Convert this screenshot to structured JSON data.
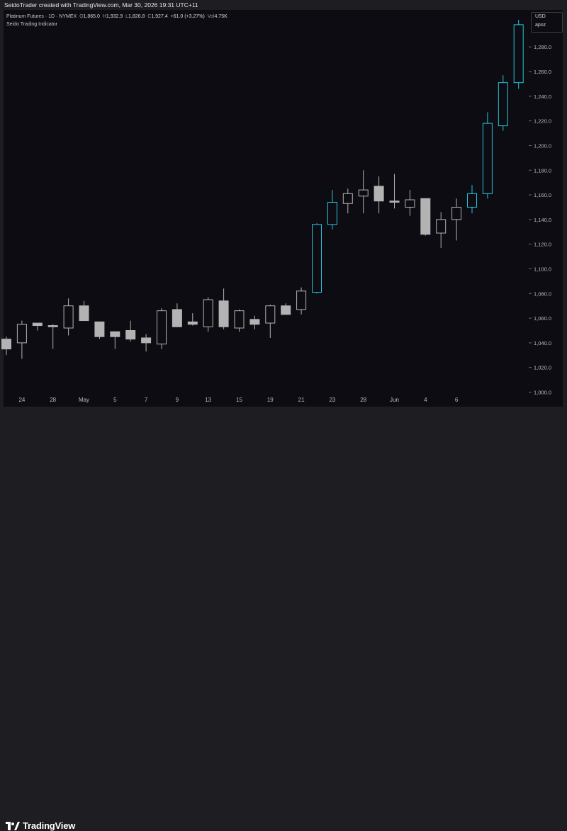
{
  "header": {
    "attribution": "SeidoTrader created with TradingView.com, Mar 30, 2026 19:31 UTC+11"
  },
  "legend": {
    "symbol": "Platinum Futures · 1D · NYMEX",
    "open_label": "O",
    "open": "1,865.0",
    "high_label": "H",
    "high": "1,932.9",
    "low_label": "L",
    "low": "1,826.8",
    "close_label": "C",
    "close": "1,927.4",
    "change": "+61.0 (+3.27%)",
    "vol_label": "Vol",
    "vol": "4.75K",
    "indicator": "Seido Trading Indicator"
  },
  "currency": {
    "code": "USD",
    "label": "apoz"
  },
  "footer": {
    "brand": "TradingView"
  },
  "colors": {
    "up_outline": "#26c6da",
    "neutral_body": "#b3b3b3",
    "neutral_outline": "#b3b3b3",
    "background": "#0c0c12"
  },
  "chart_data": {
    "type": "candlestick",
    "y_ticks": [
      "1,000.0",
      "1,020.0",
      "1,040.0",
      "1,060.0",
      "1,080.0",
      "1,100.0",
      "1,120.0",
      "1,140.0",
      "1,160.0",
      "1,180.0",
      "1,200.0",
      "1,220.0",
      "1,240.0",
      "1,260.0",
      "1,280.0"
    ],
    "y_tick_values": [
      1000,
      1020,
      1040,
      1060,
      1080,
      1100,
      1120,
      1140,
      1160,
      1180,
      1200,
      1220,
      1240,
      1260,
      1280
    ],
    "ylim": [
      998,
      1310
    ],
    "x_ticks": [
      {
        "label": "24",
        "i": 1
      },
      {
        "label": "28",
        "i": 3
      },
      {
        "label": "May",
        "i": 5
      },
      {
        "label": "5",
        "i": 7
      },
      {
        "label": "7",
        "i": 9
      },
      {
        "label": "9",
        "i": 11
      },
      {
        "label": "13",
        "i": 13
      },
      {
        "label": "15",
        "i": 15
      },
      {
        "label": "19",
        "i": 17
      },
      {
        "label": "21",
        "i": 19
      },
      {
        "label": "23",
        "i": 21
      },
      {
        "label": "28",
        "i": 23
      },
      {
        "label": "Jun",
        "i": 25
      },
      {
        "label": "4",
        "i": 27
      },
      {
        "label": "6",
        "i": 29
      }
    ],
    "candles": [
      {
        "o": 1035,
        "h": 1045,
        "l": 1030,
        "c": 1043,
        "s": "n"
      },
      {
        "o": 1040,
        "h": 1058,
        "l": 1027,
        "c": 1055,
        "s": "h"
      },
      {
        "o": 1054,
        "h": 1056,
        "l": 1050,
        "c": 1056,
        "s": "f"
      },
      {
        "o": 1053,
        "h": 1055,
        "l": 1035,
        "c": 1054,
        "s": "f"
      },
      {
        "o": 1052,
        "h": 1076,
        "l": 1046,
        "c": 1070,
        "s": "h"
      },
      {
        "o": 1070,
        "h": 1074,
        "l": 1058,
        "c": 1058,
        "s": "f"
      },
      {
        "o": 1057,
        "h": 1057,
        "l": 1043,
        "c": 1045,
        "s": "f"
      },
      {
        "o": 1049,
        "h": 1049,
        "l": 1035,
        "c": 1045,
        "s": "f"
      },
      {
        "o": 1050,
        "h": 1058,
        "l": 1041,
        "c": 1043,
        "s": "f"
      },
      {
        "o": 1044,
        "h": 1047,
        "l": 1033,
        "c": 1040,
        "s": "f"
      },
      {
        "o": 1039,
        "h": 1068,
        "l": 1035,
        "c": 1066,
        "s": "h"
      },
      {
        "o": 1067,
        "h": 1072,
        "l": 1053,
        "c": 1053,
        "s": "f"
      },
      {
        "o": 1055,
        "h": 1064,
        "l": 1054,
        "c": 1057,
        "s": "f"
      },
      {
        "o": 1053,
        "h": 1077,
        "l": 1049,
        "c": 1075,
        "s": "h"
      },
      {
        "o": 1074,
        "h": 1084,
        "l": 1051,
        "c": 1053,
        "s": "f"
      },
      {
        "o": 1052,
        "h": 1067,
        "l": 1049,
        "c": 1066,
        "s": "h"
      },
      {
        "o": 1059,
        "h": 1062,
        "l": 1051,
        "c": 1055,
        "s": "f"
      },
      {
        "o": 1056,
        "h": 1071,
        "l": 1044,
        "c": 1070,
        "s": "h"
      },
      {
        "o": 1070,
        "h": 1072,
        "l": 1063,
        "c": 1063,
        "s": "f"
      },
      {
        "o": 1067,
        "h": 1085,
        "l": 1063,
        "c": 1082,
        "s": "h"
      },
      {
        "o": 1081,
        "h": 1137,
        "l": 1080,
        "c": 1136,
        "s": "u"
      },
      {
        "o": 1136,
        "h": 1164,
        "l": 1132,
        "c": 1154,
        "s": "u"
      },
      {
        "o": 1153,
        "h": 1165,
        "l": 1145,
        "c": 1161,
        "s": "h"
      },
      {
        "o": 1159,
        "h": 1180,
        "l": 1145,
        "c": 1164,
        "s": "h"
      },
      {
        "o": 1167,
        "h": 1175,
        "l": 1145,
        "c": 1155,
        "s": "f"
      },
      {
        "o": 1155,
        "h": 1177,
        "l": 1149,
        "c": 1154,
        "s": "f"
      },
      {
        "o": 1150,
        "h": 1164,
        "l": 1143,
        "c": 1156,
        "s": "h"
      },
      {
        "o": 1157,
        "h": 1157,
        "l": 1127,
        "c": 1128,
        "s": "f"
      },
      {
        "o": 1129,
        "h": 1146,
        "l": 1117,
        "c": 1140,
        "s": "h"
      },
      {
        "o": 1140,
        "h": 1157,
        "l": 1123,
        "c": 1150,
        "s": "h"
      },
      {
        "o": 1150,
        "h": 1168,
        "l": 1145,
        "c": 1161,
        "s": "u"
      },
      {
        "o": 1161,
        "h": 1227,
        "l": 1157,
        "c": 1218,
        "s": "u"
      },
      {
        "o": 1216,
        "h": 1257,
        "l": 1212,
        "c": 1251,
        "s": "u"
      },
      {
        "o": 1251,
        "h": 1302,
        "l": 1246,
        "c": 1298,
        "s": "u"
      }
    ]
  }
}
